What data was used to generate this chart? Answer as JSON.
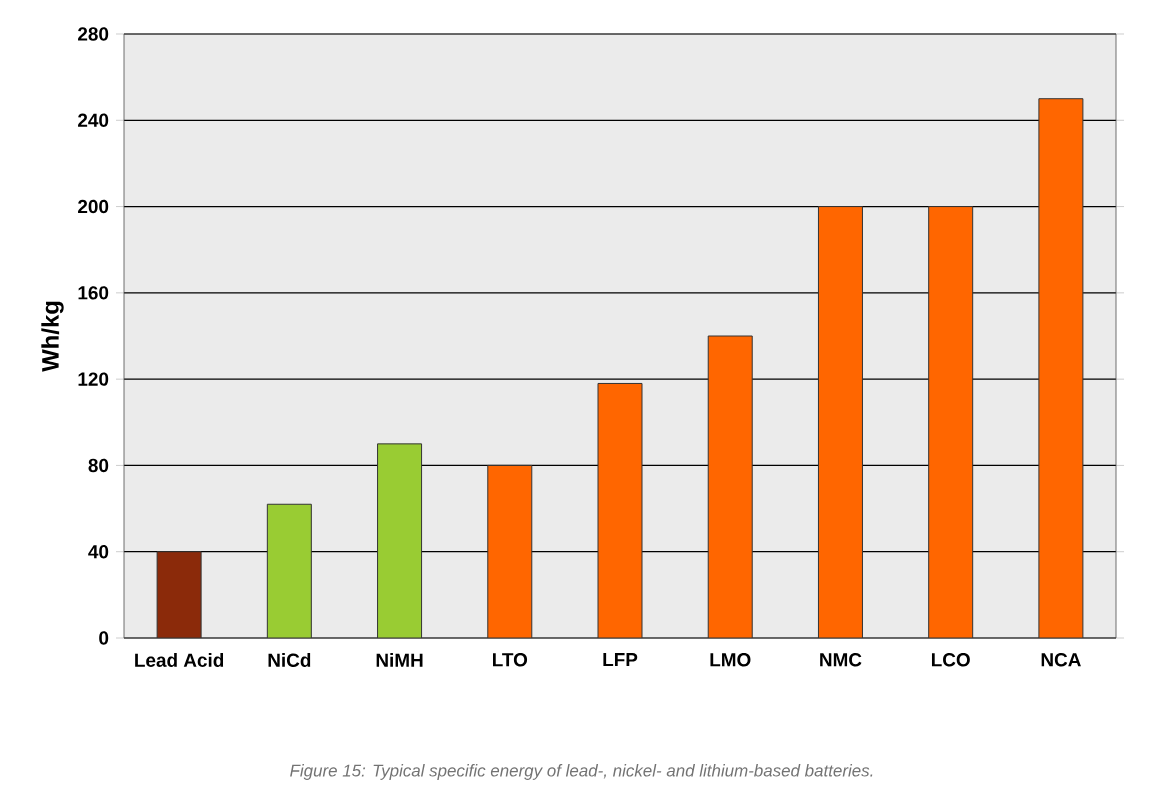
{
  "chart_data": {
    "type": "bar",
    "ylabel": "Wh/kg",
    "categories": [
      "Lead Acid",
      "NiCd",
      "NiMH",
      "LTO",
      "LFP",
      "LMO",
      "NMC",
      "LCO",
      "NCA"
    ],
    "values": [
      40,
      62,
      90,
      80,
      118,
      140,
      200,
      200,
      250
    ],
    "colors": [
      "#8b2a0a",
      "#99cc33",
      "#99cc33",
      "#ff6600",
      "#ff6600",
      "#ff6600",
      "#ff6600",
      "#ff6600",
      "#ff6600"
    ],
    "ylim": [
      0,
      280
    ],
    "yticks": [
      0,
      40,
      80,
      120,
      160,
      200,
      240,
      280
    ],
    "grid": "y",
    "annotations": [
      "Figure 15: Typical specific energy of lead-, nickel- and lithium-based batteries."
    ]
  }
}
